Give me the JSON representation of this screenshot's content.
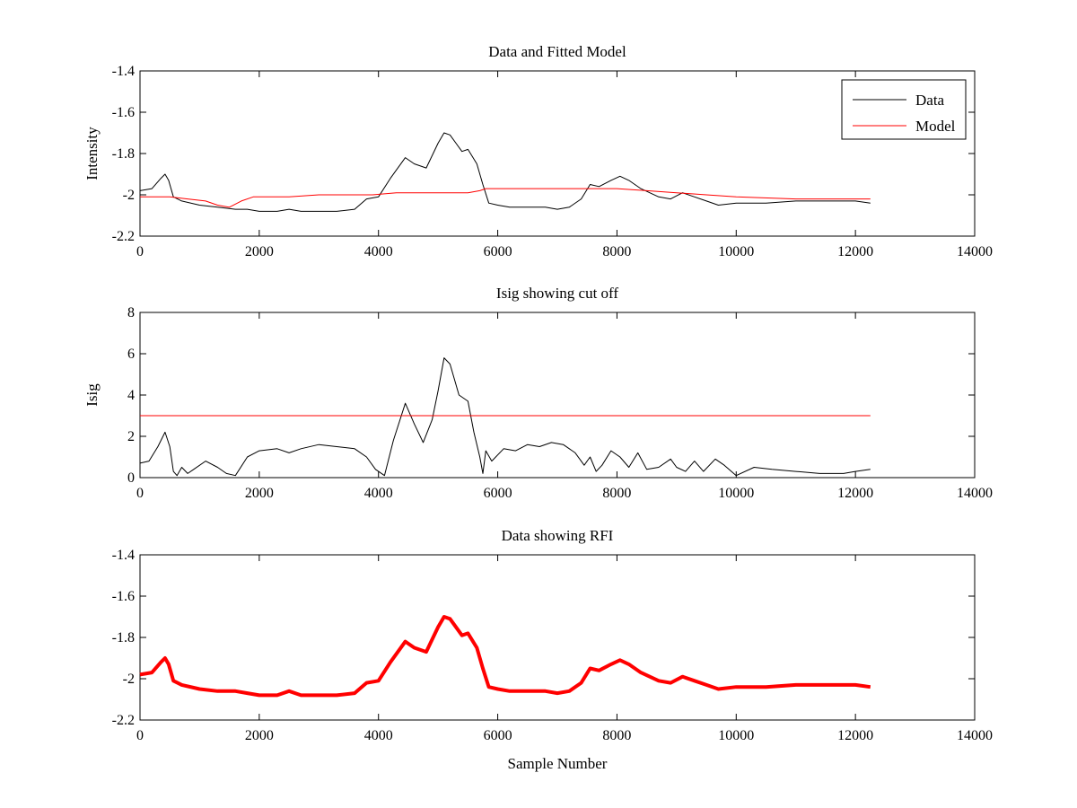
{
  "chart_data": [
    {
      "type": "line",
      "title": "Data and Fitted Model",
      "xlabel": "",
      "ylabel": "Intensity",
      "xlim": [
        0,
        14000
      ],
      "ylim": [
        -2.2,
        -1.4
      ],
      "xticks": [
        "0",
        "2000",
        "4000",
        "6000",
        "8000",
        "10000",
        "12000",
        "14000"
      ],
      "yticks": [
        "-2.2",
        "-2",
        "-1.8",
        "-1.6",
        "-1.4"
      ],
      "grid": false,
      "legend": {
        "position": "top-right",
        "entries": [
          "Data",
          "Model"
        ]
      },
      "series": [
        {
          "name": "Data",
          "color": "#000000",
          "x": [
            0,
            200,
            350,
            420,
            480,
            560,
            700,
            1000,
            1300,
            1600,
            1800,
            2000,
            2300,
            2500,
            2700,
            3000,
            3300,
            3600,
            3800,
            4000,
            4200,
            4450,
            4600,
            4800,
            5000,
            5100,
            5200,
            5400,
            5500,
            5650,
            5750,
            5850,
            6000,
            6200,
            6500,
            6800,
            7000,
            7200,
            7400,
            7550,
            7700,
            7900,
            8050,
            8200,
            8400,
            8700,
            8900,
            9100,
            9300,
            9500,
            9700,
            10000,
            10500,
            11000,
            11500,
            12000,
            12250
          ],
          "y": [
            -1.98,
            -1.97,
            -1.92,
            -1.9,
            -1.93,
            -2.01,
            -2.03,
            -2.05,
            -2.06,
            -2.07,
            -2.07,
            -2.08,
            -2.08,
            -2.07,
            -2.08,
            -2.08,
            -2.08,
            -2.07,
            -2.02,
            -2.01,
            -1.92,
            -1.82,
            -1.85,
            -1.87,
            -1.75,
            -1.7,
            -1.71,
            -1.79,
            -1.78,
            -1.85,
            -1.95,
            -2.04,
            -2.05,
            -2.06,
            -2.06,
            -2.06,
            -2.07,
            -2.06,
            -2.02,
            -1.95,
            -1.96,
            -1.93,
            -1.91,
            -1.93,
            -1.97,
            -2.01,
            -2.02,
            -1.99,
            -2.01,
            -2.03,
            -2.05,
            -2.04,
            -2.04,
            -2.03,
            -2.03,
            -2.03,
            -2.04
          ]
        },
        {
          "name": "Model",
          "color": "#ff0000",
          "x": [
            0,
            500,
            800,
            1100,
            1300,
            1500,
            1700,
            1900,
            2500,
            3000,
            3500,
            3900,
            4300,
            4800,
            5100,
            5300,
            5500,
            5700,
            5800,
            6500,
            7000,
            7500,
            8000,
            8500,
            9000,
            9500,
            10000,
            11000,
            12250
          ],
          "y": [
            -2.01,
            -2.01,
            -2.02,
            -2.03,
            -2.05,
            -2.06,
            -2.03,
            -2.01,
            -2.01,
            -2.0,
            -2.0,
            -2.0,
            -1.99,
            -1.99,
            -1.99,
            -1.99,
            -1.99,
            -1.98,
            -1.97,
            -1.97,
            -1.97,
            -1.97,
            -1.97,
            -1.98,
            -1.99,
            -2.0,
            -2.01,
            -2.02,
            -2.02
          ]
        }
      ]
    },
    {
      "type": "line",
      "title": "Isig showing cut off",
      "xlabel": "",
      "ylabel": "Isig",
      "xlim": [
        0,
        14000
      ],
      "ylim": [
        0,
        8
      ],
      "xticks": [
        "0",
        "2000",
        "4000",
        "6000",
        "8000",
        "10000",
        "12000",
        "14000"
      ],
      "yticks": [
        "0",
        "2",
        "4",
        "6",
        "8"
      ],
      "grid": false,
      "series": [
        {
          "color": "#000000",
          "x": [
            0,
            150,
            300,
            420,
            500,
            560,
            620,
            700,
            800,
            900,
            1100,
            1300,
            1450,
            1600,
            1800,
            2000,
            2300,
            2500,
            2700,
            3000,
            3300,
            3600,
            3800,
            3950,
            4100,
            4250,
            4450,
            4600,
            4750,
            4900,
            5000,
            5100,
            5200,
            5350,
            5500,
            5600,
            5700,
            5750,
            5800,
            5900,
            6100,
            6300,
            6500,
            6700,
            6900,
            7100,
            7300,
            7450,
            7550,
            7650,
            7750,
            7900,
            8050,
            8200,
            8350,
            8500,
            8700,
            8900,
            9000,
            9150,
            9300,
            9450,
            9650,
            9800,
            10000,
            10300,
            10600,
            11000,
            11400,
            11800,
            12000,
            12250
          ],
          "y": [
            0.7,
            0.8,
            1.5,
            2.2,
            1.5,
            0.3,
            0.1,
            0.5,
            0.2,
            0.4,
            0.8,
            0.5,
            0.2,
            0.1,
            1.0,
            1.3,
            1.4,
            1.2,
            1.4,
            1.6,
            1.5,
            1.4,
            1.0,
            0.4,
            0.1,
            1.8,
            3.6,
            2.6,
            1.7,
            2.8,
            4.2,
            5.8,
            5.5,
            4.0,
            3.7,
            2.2,
            1.0,
            0.2,
            1.3,
            0.8,
            1.4,
            1.3,
            1.6,
            1.5,
            1.7,
            1.6,
            1.2,
            0.6,
            1.0,
            0.3,
            0.6,
            1.3,
            1.0,
            0.5,
            1.2,
            0.4,
            0.5,
            0.9,
            0.5,
            0.3,
            0.8,
            0.3,
            0.9,
            0.6,
            0.1,
            0.5,
            0.4,
            0.3,
            0.2,
            0.2,
            0.3,
            0.4
          ]
        },
        {
          "color": "#ff0000",
          "x": [
            0,
            12250
          ],
          "y": [
            3,
            3
          ]
        }
      ]
    },
    {
      "type": "line",
      "title": "Data showing RFI",
      "xlabel": "Sample Number",
      "ylabel": "",
      "xlim": [
        0,
        14000
      ],
      "ylim": [
        -2.2,
        -1.4
      ],
      "xticks": [
        "0",
        "2000",
        "4000",
        "6000",
        "8000",
        "10000",
        "12000",
        "14000"
      ],
      "yticks": [
        "-2.2",
        "-2",
        "-1.8",
        "-1.6",
        "-1.4"
      ],
      "grid": false,
      "series": [
        {
          "color": "#ff0000",
          "x": [
            0,
            200,
            350,
            420,
            480,
            560,
            700,
            1000,
            1300,
            1600,
            1800,
            2000,
            2300,
            2500,
            2700,
            3000,
            3300,
            3600,
            3800,
            4000,
            4200,
            4450,
            4600,
            4800,
            5000,
            5100,
            5200,
            5400,
            5500,
            5650,
            5750,
            5850,
            6000,
            6200,
            6500,
            6800,
            7000,
            7200,
            7400,
            7550,
            7700,
            7900,
            8050,
            8200,
            8400,
            8700,
            8900,
            9100,
            9300,
            9500,
            9700,
            10000,
            10500,
            11000,
            11500,
            12000,
            12250
          ],
          "y": [
            -1.98,
            -1.97,
            -1.92,
            -1.9,
            -1.93,
            -2.01,
            -2.03,
            -2.05,
            -2.06,
            -2.06,
            -2.07,
            -2.08,
            -2.08,
            -2.06,
            -2.08,
            -2.08,
            -2.08,
            -2.07,
            -2.02,
            -2.01,
            -1.92,
            -1.82,
            -1.85,
            -1.87,
            -1.75,
            -1.7,
            -1.71,
            -1.79,
            -1.78,
            -1.85,
            -1.95,
            -2.04,
            -2.05,
            -2.06,
            -2.06,
            -2.06,
            -2.07,
            -2.06,
            -2.02,
            -1.95,
            -1.96,
            -1.93,
            -1.91,
            -1.93,
            -1.97,
            -2.01,
            -2.02,
            -1.99,
            -2.01,
            -2.03,
            -2.05,
            -2.04,
            -2.04,
            -2.03,
            -2.03,
            -2.03,
            -2.04
          ]
        }
      ]
    }
  ]
}
